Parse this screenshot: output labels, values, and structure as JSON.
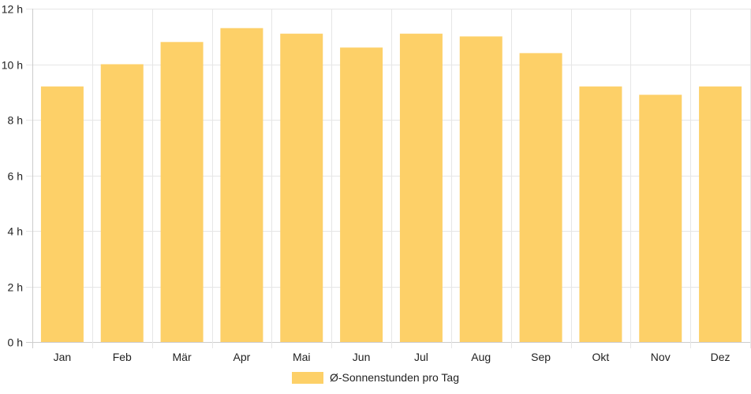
{
  "chart_data": {
    "type": "bar",
    "categories": [
      "Jan",
      "Feb",
      "Mär",
      "Apr",
      "Mai",
      "Jun",
      "Jul",
      "Aug",
      "Sep",
      "Okt",
      "Nov",
      "Dez"
    ],
    "series": [
      {
        "name": "Ø-Sonnenstunden pro Tag",
        "values": [
          9.2,
          10.0,
          10.8,
          11.3,
          11.1,
          10.6,
          11.1,
          11.0,
          10.4,
          9.2,
          8.9,
          9.2
        ]
      }
    ],
    "title": "",
    "xlabel": "",
    "ylabel": "",
    "ylim": [
      0,
      12
    ],
    "y_ticks": [
      "0 h",
      "2 h",
      "4 h",
      "6 h",
      "8 h",
      "10 h",
      "12 h"
    ],
    "y_tick_values": [
      0,
      2,
      4,
      6,
      8,
      10,
      12
    ],
    "grid": true,
    "legend_position": "bottom",
    "colors": {
      "bar": "#fdd068",
      "grid": "#e6e6e6",
      "axis": "#cccccc",
      "text": "#222222"
    }
  }
}
